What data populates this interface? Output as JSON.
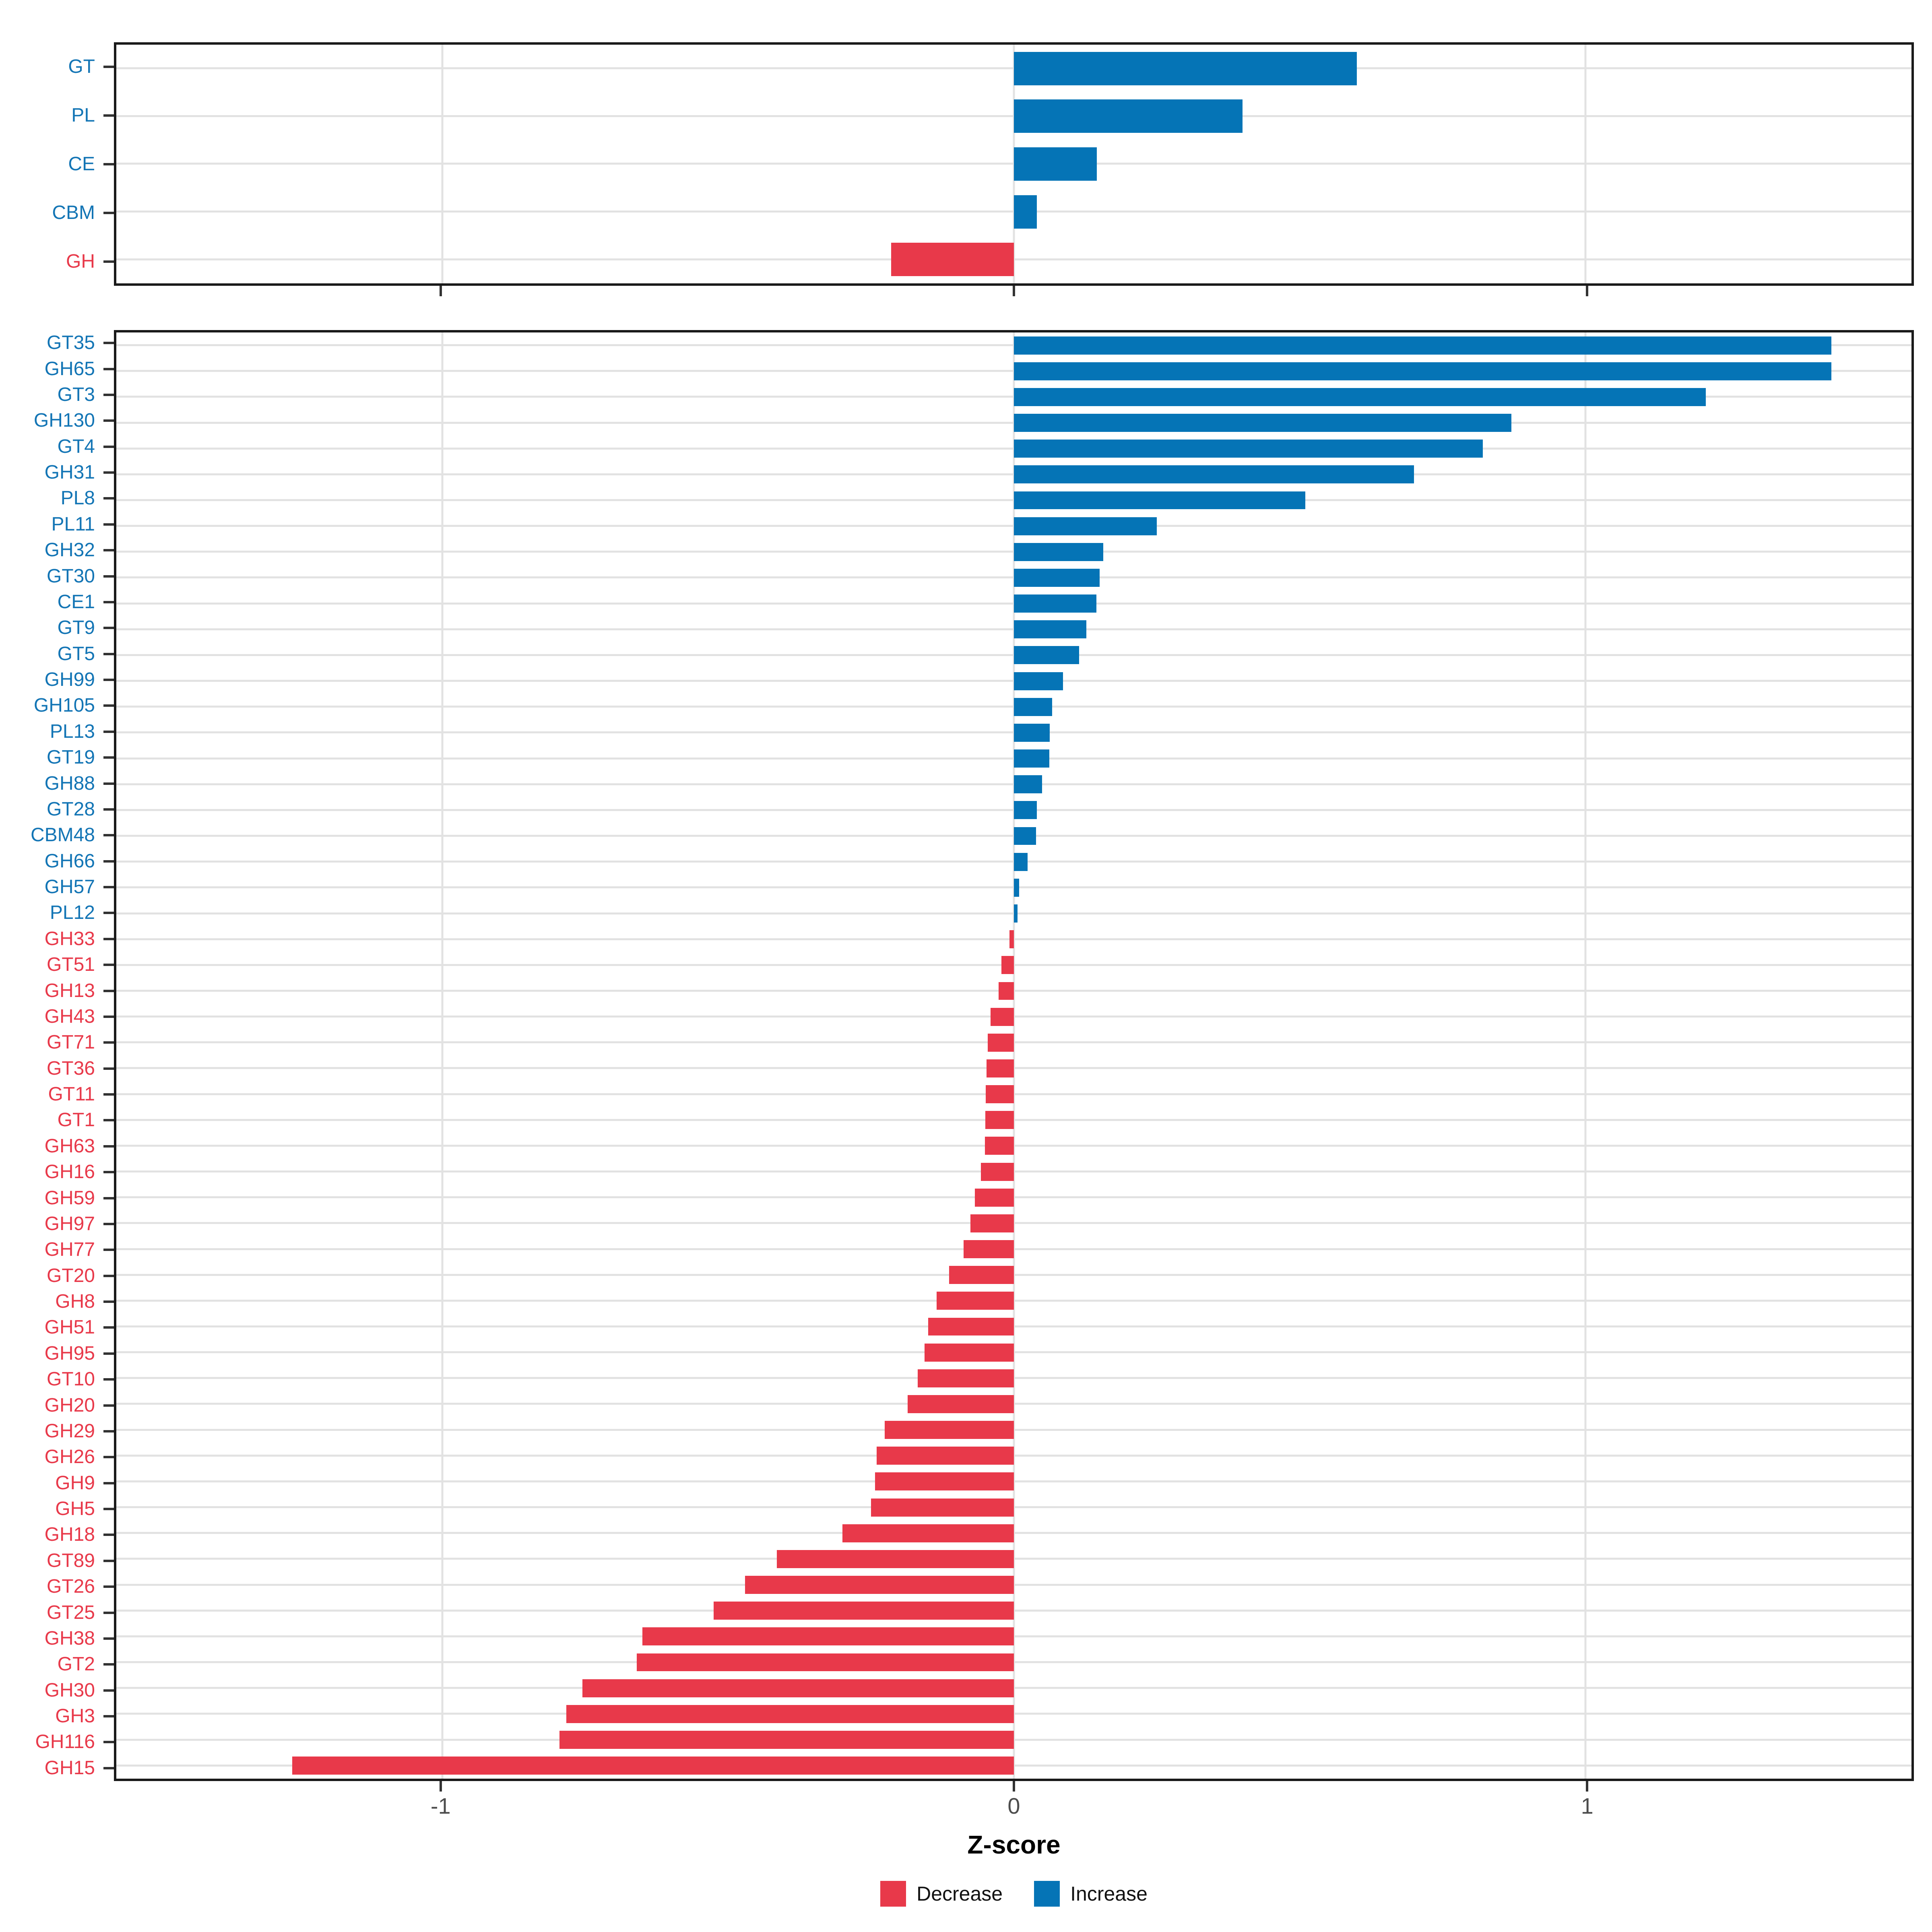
{
  "figure": {
    "xlabel": "Z-score",
    "x_tick_labels": [
      "-1",
      "0",
      "1"
    ],
    "legend": {
      "decrease_label": "Decrease",
      "increase_label": "Increase"
    }
  },
  "chart_data": [
    {
      "type": "bar",
      "orientation": "horizontal",
      "panel": "summary",
      "title": "",
      "xlabel": "Z-score",
      "xlim": [
        -1.57,
        1.57
      ],
      "x_ticks": [
        -1,
        0,
        1
      ],
      "grid": true,
      "legend_position": "bottom",
      "categories": [
        "GT",
        "PL",
        "CE",
        "CBM",
        "GH"
      ],
      "values": [
        0.6,
        0.4,
        0.145,
        0.04,
        -0.215
      ],
      "colors": {
        "increase": "#0574b6",
        "decrease": "#e8394a"
      }
    },
    {
      "type": "bar",
      "orientation": "horizontal",
      "panel": "families",
      "title": "",
      "xlabel": "Z-score",
      "xlim": [
        -1.57,
        1.57
      ],
      "x_ticks": [
        -1,
        0,
        1
      ],
      "grid": true,
      "legend_position": "bottom",
      "categories": [
        "GT35",
        "GH65",
        "GT3",
        "GH130",
        "GT4",
        "GH31",
        "PL8",
        "PL11",
        "GH32",
        "GT30",
        "CE1",
        "GT9",
        "GT5",
        "GH99",
        "GH105",
        "PL13",
        "GT19",
        "GH88",
        "GT28",
        "CBM48",
        "GH66",
        "GH57",
        "PL12",
        "GH33",
        "GT51",
        "GH13",
        "GH43",
        "GT71",
        "GT36",
        "GT11",
        "GT1",
        "GH63",
        "GH16",
        "GH59",
        "GH97",
        "GH77",
        "GT20",
        "GH8",
        "GH51",
        "GH95",
        "GT10",
        "GH20",
        "GH29",
        "GH26",
        "GH9",
        "GH5",
        "GH18",
        "GT89",
        "GT26",
        "GT25",
        "GH38",
        "GT2",
        "GH30",
        "GH3",
        "GH116",
        "GH15"
      ],
      "values": [
        1.43,
        1.43,
        1.21,
        0.87,
        0.82,
        0.7,
        0.51,
        0.25,
        0.156,
        0.15,
        0.144,
        0.127,
        0.114,
        0.086,
        0.067,
        0.063,
        0.062,
        0.049,
        0.04,
        0.039,
        0.024,
        0.009,
        0.006,
        -0.008,
        -0.022,
        -0.027,
        -0.041,
        -0.046,
        -0.048,
        -0.049,
        -0.05,
        -0.051,
        -0.058,
        -0.068,
        -0.076,
        -0.088,
        -0.113,
        -0.135,
        -0.15,
        -0.156,
        -0.168,
        -0.186,
        -0.226,
        -0.24,
        -0.243,
        -0.25,
        -0.3,
        -0.415,
        -0.47,
        -0.525,
        -0.65,
        -0.66,
        -0.755,
        -0.783,
        -0.795,
        -1.262
      ],
      "colors": {
        "increase": "#0574b6",
        "decrease": "#e8394a"
      }
    }
  ],
  "style": {
    "increase_color": "#0574b6",
    "decrease_color": "#e8394a",
    "label_increase_color": "#1375b5",
    "label_decrease_color": "#e8394a",
    "grid_color": "#e2e2e2",
    "border_color": "#1a1a1a",
    "tick_color": "#333333",
    "tick_text_color": "#4d4d4d"
  }
}
